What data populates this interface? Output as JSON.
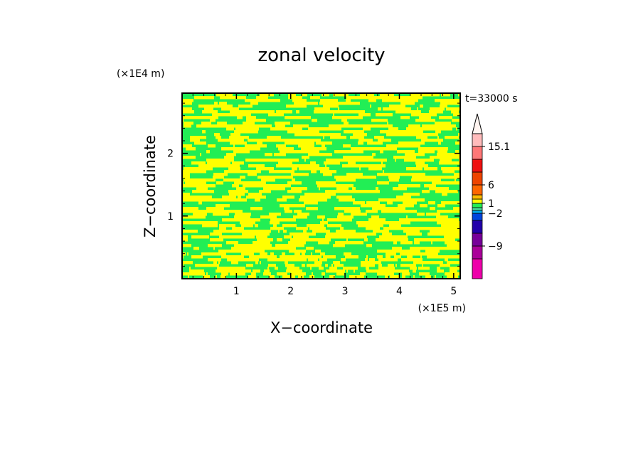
{
  "chart_data": {
    "type": "heatmap",
    "title": "zonal velocity",
    "xlabel": "X−coordinate",
    "ylabel": "Z−coordinate",
    "x_scale_label": "(×1E5 m)",
    "y_scale_label": "(×1E4 m)",
    "time_label": "t=33000 s",
    "xlim": [
      0,
      5.12
    ],
    "ylim": [
      0,
      2.96
    ],
    "x_ticks": [
      1,
      2,
      3,
      4,
      5
    ],
    "y_ticks": [
      1,
      2
    ],
    "field_colors": {
      "positive_small": "#ffff00",
      "near_zero": "#22ee55"
    },
    "colorbar": {
      "levels_bottom_to_top": [
        {
          "color": "#ee00aa"
        },
        {
          "color": "#aa0099"
        },
        {
          "color": "#770099"
        },
        {
          "color": "#2200aa"
        },
        {
          "color": "#0044dd"
        },
        {
          "color": "#00aaee"
        },
        {
          "color": "#44dd99"
        },
        {
          "color": "#22ee55"
        },
        {
          "color": "#ffff00"
        },
        {
          "color": "#ffbb00"
        },
        {
          "color": "#ff6600"
        },
        {
          "color": "#ee4400"
        },
        {
          "color": "#ee1111"
        },
        {
          "color": "#ff7777"
        },
        {
          "color": "#ffbbbb"
        }
      ],
      "boundaries": [
        -16,
        -12,
        -9,
        -6,
        -4,
        -2,
        -1,
        0,
        1,
        2,
        4,
        6,
        9,
        12,
        15.1,
        20
      ],
      "labels": [
        {
          "text": "15.1",
          "value": 15.1
        },
        {
          "text": "6",
          "value": 6
        },
        {
          "text": "1",
          "value": 1
        },
        {
          "text": "−2",
          "value": -2
        },
        {
          "text": "−9",
          "value": -9
        }
      ],
      "extend_top": true
    }
  }
}
